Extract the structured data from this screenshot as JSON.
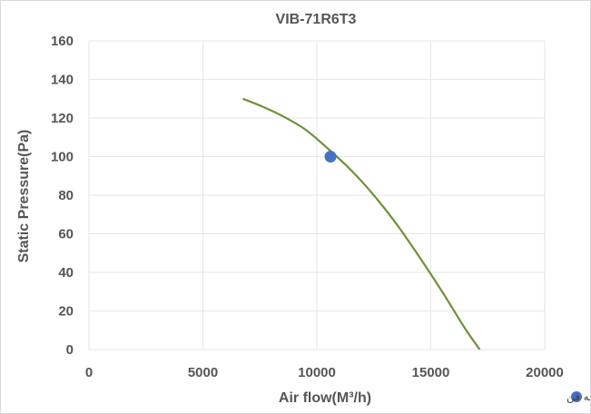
{
  "chart_data": {
    "type": "line",
    "title": "VIB-71R6T3",
    "xlabel": "Air flow(M³/h)",
    "ylabel": "Static Pressure(Pa)",
    "xlim": [
      0,
      20000
    ],
    "ylim": [
      0,
      160
    ],
    "x_ticks": [
      "0",
      "5000",
      "10000",
      "15000",
      "20000"
    ],
    "y_ticks": [
      "0",
      "20",
      "40",
      "60",
      "80",
      "100",
      "120",
      "140",
      "160"
    ],
    "grid": true,
    "series": [
      {
        "type": "line",
        "color": "#70903b",
        "x": [
          6750,
          7600,
          8500,
          9500,
          10500,
          11500,
          12500,
          13500,
          14500,
          15500,
          16500,
          17150
        ],
        "y": [
          130,
          126,
          121,
          114,
          104,
          93,
          80,
          65,
          48,
          30,
          11,
          0
        ]
      },
      {
        "name": "نقطه عملکرد بهینه فن",
        "type": "scatter",
        "color": "#4472c4",
        "x": [
          10600
        ],
        "y": [
          100
        ]
      }
    ],
    "legend_position": "bottom-right"
  }
}
